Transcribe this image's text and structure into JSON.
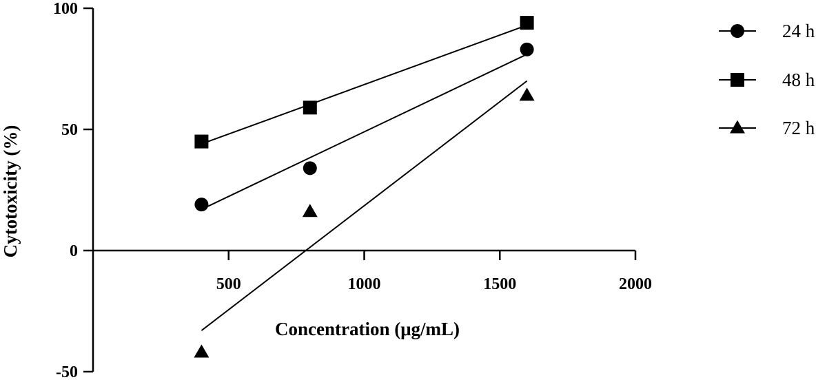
{
  "chart_data": {
    "type": "scatter",
    "title": "",
    "xlabel": "Concentration (μg/mL)",
    "ylabel": "Cytotoxicity (%)",
    "xlim": [
      0,
      2000
    ],
    "ylim": [
      -50,
      100
    ],
    "xticks": [
      500,
      1000,
      1500,
      2000
    ],
    "yticks": [
      -50,
      0,
      50,
      100
    ],
    "grid": false,
    "legend_position": "right",
    "series": [
      {
        "name": "24 h",
        "marker": "circle",
        "x": [
          400,
          800,
          1600
        ],
        "y": [
          19,
          34,
          83
        ],
        "fit": {
          "x": [
            400,
            1600
          ],
          "y": [
            17,
            81
          ]
        }
      },
      {
        "name": "48 h",
        "marker": "square",
        "x": [
          400,
          800,
          1600
        ],
        "y": [
          45,
          59,
          94
        ],
        "fit": {
          "x": [
            400,
            1600
          ],
          "y": [
            44,
            93
          ]
        }
      },
      {
        "name": "72 h",
        "marker": "triangle",
        "x": [
          400,
          800,
          1600
        ],
        "y": [
          -42,
          16,
          64
        ],
        "fit": {
          "x": [
            400,
            1600
          ],
          "y": [
            -33,
            70
          ]
        }
      }
    ]
  }
}
